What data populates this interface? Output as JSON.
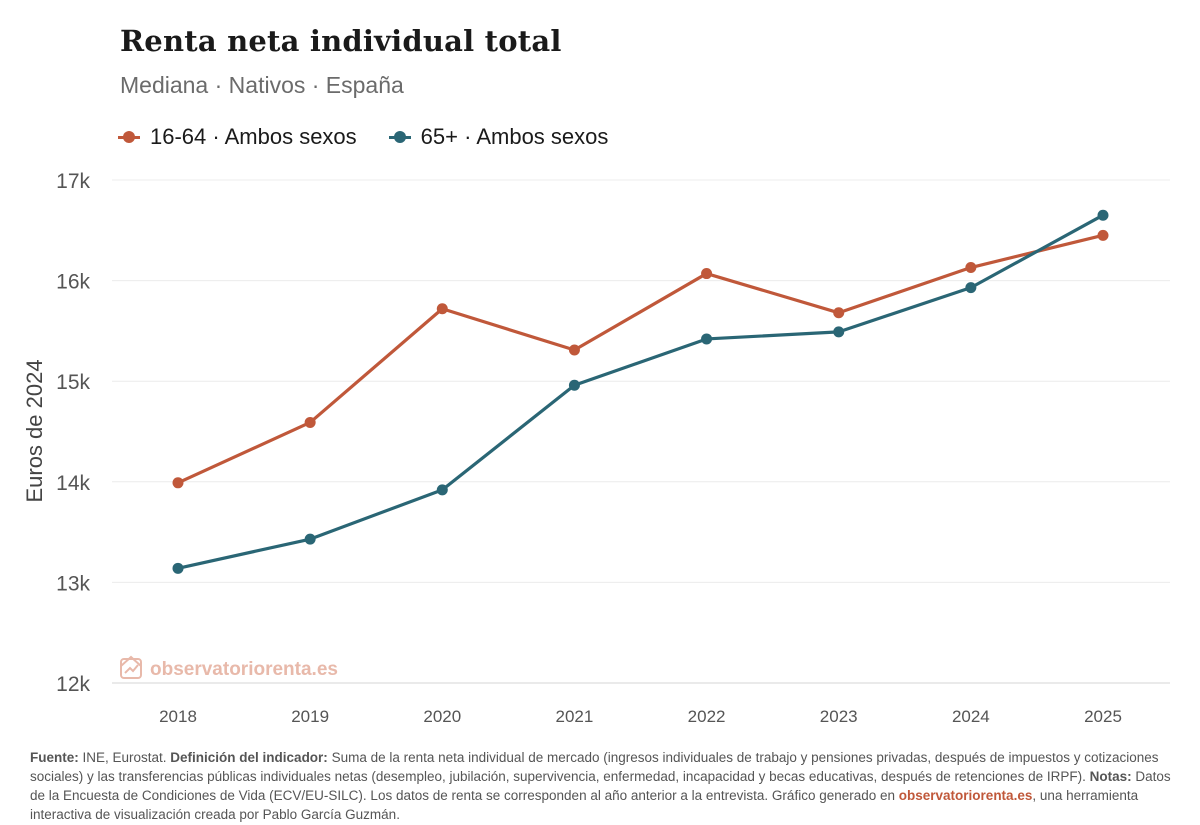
{
  "header": {
    "title": "Renta neta individual total",
    "subtitle": "Mediana · Nativos · España"
  },
  "colors": {
    "series1": "#c0583a",
    "series2": "#2a6675",
    "grid": "#ececec",
    "axis_text": "#555555",
    "watermark": "#e8b9aa"
  },
  "watermark": {
    "text": "observatoriorenta.es",
    "icon": "chart-trend-icon"
  },
  "chart_data": {
    "type": "line",
    "title": "Renta neta individual total",
    "subtitle": "Mediana · Nativos · España",
    "xlabel": "",
    "ylabel": "Euros de 2024",
    "categories": [
      "2018",
      "2019",
      "2020",
      "2021",
      "2022",
      "2023",
      "2024",
      "2025"
    ],
    "ylim": [
      12000,
      17000
    ],
    "yticks": [
      12000,
      13000,
      14000,
      15000,
      16000,
      17000
    ],
    "ytick_labels": [
      "12k",
      "13k",
      "14k",
      "15k",
      "16k",
      "17k"
    ],
    "grid": true,
    "legend_position": "top-left",
    "series": [
      {
        "name": "16-64 · Ambos sexos",
        "color": "#c0583a",
        "values": [
          13990,
          14590,
          15720,
          15310,
          16070,
          15680,
          16130,
          16450
        ]
      },
      {
        "name": "65+ · Ambos sexos",
        "color": "#2a6675",
        "values": [
          13140,
          13430,
          13920,
          14960,
          15420,
          15490,
          15930,
          16650
        ]
      }
    ]
  },
  "footer": {
    "source_label": "Fuente:",
    "source_text": " INE, Eurostat. ",
    "definition_label": "Definición del indicador:",
    "definition_text": " Suma de la renta neta individual de mercado (ingresos individuales de trabajo y pensiones privadas, después de impuestos y cotizaciones sociales) y las transferencias públicas individuales netas (desempleo, jubilación, supervivencia, enfermedad, incapacidad y becas educativas, después de retenciones de IRPF). ",
    "notes_label": "Notas:",
    "notes_text": " Datos de la Encuesta de Condiciones de Vida (ECV/EU-SILC). Los datos de renta se corresponden al año anterior a la entrevista. Gráfico generado en ",
    "link_text": "observatoriorenta.es",
    "tail_text": ", una herramienta interactiva de visualización creada por Pablo García Guzmán."
  }
}
